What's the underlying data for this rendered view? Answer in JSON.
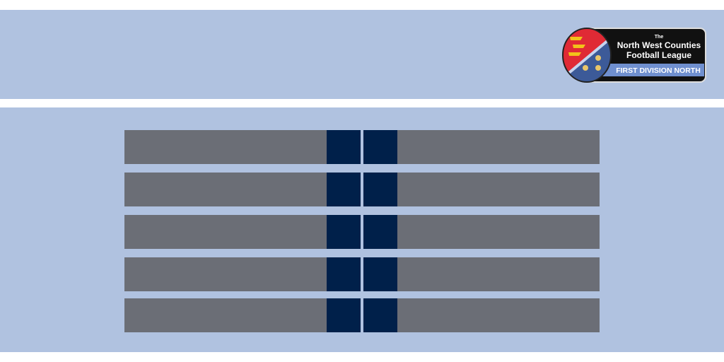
{
  "logo": {
    "small": "The",
    "name_line_1": "North West Counties",
    "name_line_2": "Football League",
    "division": "FIRST DIVISION NORTH"
  }
}
